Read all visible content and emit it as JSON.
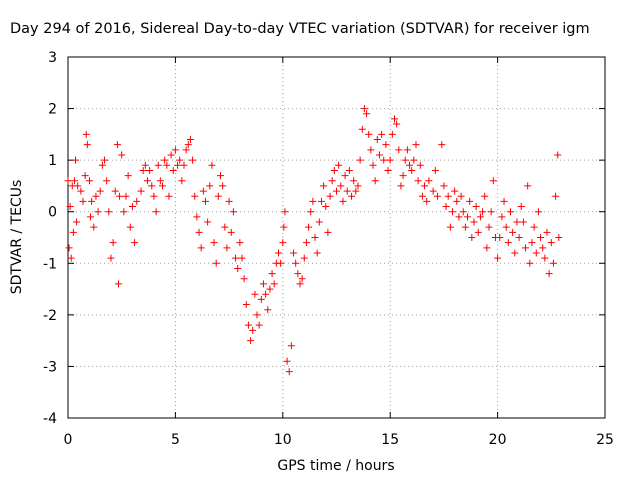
{
  "chart_data": {
    "type": "scatter",
    "title": "Day 294 of 2016, Sidereal Day-to-day VTEC variation (SDTVAR) for receiver igm",
    "xlabel": "GPS time / hours",
    "ylabel": "SDTVAR / TECUs",
    "xlim": [
      0,
      25
    ],
    "ylim": [
      -4,
      3
    ],
    "x_ticks": [
      0,
      5,
      10,
      15,
      20,
      25
    ],
    "y_ticks": [
      -4,
      -3,
      -2,
      -1,
      0,
      1,
      2,
      3
    ],
    "x_tick_labels": [
      "0",
      "5",
      "10",
      "15",
      "20",
      "25"
    ],
    "y_tick_labels": [
      "-4",
      "-3",
      "-2",
      "-1",
      "0",
      "1",
      "2",
      "3"
    ],
    "grid": true,
    "marker": "+",
    "color": "#ff0000",
    "series": [
      {
        "name": "SDTVAR",
        "points": [
          [
            0.0,
            0.6
          ],
          [
            0.05,
            -0.7
          ],
          [
            0.1,
            0.1
          ],
          [
            0.15,
            -0.9
          ],
          [
            0.2,
            0.5
          ],
          [
            0.25,
            -0.4
          ],
          [
            0.3,
            0.6
          ],
          [
            0.35,
            1.0
          ],
          [
            0.4,
            -0.2
          ],
          [
            0.45,
            0.5
          ],
          [
            0.6,
            0.4
          ],
          [
            0.7,
            0.2
          ],
          [
            0.8,
            0.7
          ],
          [
            0.85,
            1.5
          ],
          [
            0.9,
            1.3
          ],
          [
            1.0,
            0.6
          ],
          [
            1.05,
            -0.1
          ],
          [
            1.1,
            0.2
          ],
          [
            1.2,
            -0.3
          ],
          [
            1.3,
            0.3
          ],
          [
            1.4,
            0.0
          ],
          [
            1.5,
            0.4
          ],
          [
            1.6,
            0.9
          ],
          [
            1.7,
            1.0
          ],
          [
            1.8,
            0.6
          ],
          [
            1.9,
            0.0
          ],
          [
            2.0,
            -0.9
          ],
          [
            2.1,
            -0.6
          ],
          [
            2.2,
            0.4
          ],
          [
            2.3,
            1.3
          ],
          [
            2.35,
            -1.4
          ],
          [
            2.4,
            0.3
          ],
          [
            2.5,
            1.1
          ],
          [
            2.6,
            0.0
          ],
          [
            2.7,
            0.3
          ],
          [
            2.8,
            0.7
          ],
          [
            2.9,
            -0.3
          ],
          [
            3.0,
            0.1
          ],
          [
            3.1,
            -0.6
          ],
          [
            3.2,
            0.2
          ],
          [
            3.4,
            0.4
          ],
          [
            3.5,
            0.8
          ],
          [
            3.6,
            0.9
          ],
          [
            3.7,
            0.6
          ],
          [
            3.8,
            0.8
          ],
          [
            3.9,
            0.5
          ],
          [
            4.0,
            0.3
          ],
          [
            4.1,
            0.0
          ],
          [
            4.2,
            0.9
          ],
          [
            4.3,
            0.6
          ],
          [
            4.4,
            0.5
          ],
          [
            4.5,
            1.0
          ],
          [
            4.6,
            0.9
          ],
          [
            4.7,
            0.3
          ],
          [
            4.8,
            1.1
          ],
          [
            4.9,
            0.8
          ],
          [
            5.0,
            1.2
          ],
          [
            5.1,
            0.9
          ],
          [
            5.2,
            1.0
          ],
          [
            5.3,
            0.6
          ],
          [
            5.4,
            0.9
          ],
          [
            5.5,
            1.2
          ],
          [
            5.6,
            1.3
          ],
          [
            5.7,
            1.4
          ],
          [
            5.8,
            1.0
          ],
          [
            5.9,
            0.3
          ],
          [
            6.0,
            -0.1
          ],
          [
            6.1,
            -0.4
          ],
          [
            6.2,
            -0.7
          ],
          [
            6.3,
            0.4
          ],
          [
            6.4,
            0.2
          ],
          [
            6.5,
            -0.2
          ],
          [
            6.6,
            0.5
          ],
          [
            6.7,
            0.9
          ],
          [
            6.8,
            -0.6
          ],
          [
            6.9,
            -1.0
          ],
          [
            7.0,
            0.3
          ],
          [
            7.1,
            0.7
          ],
          [
            7.2,
            0.5
          ],
          [
            7.3,
            -0.3
          ],
          [
            7.4,
            -0.7
          ],
          [
            7.5,
            0.2
          ],
          [
            7.6,
            -0.4
          ],
          [
            7.7,
            0.0
          ],
          [
            7.8,
            -0.9
          ],
          [
            7.9,
            -1.1
          ],
          [
            8.0,
            -0.6
          ],
          [
            8.1,
            -0.9
          ],
          [
            8.2,
            -1.3
          ],
          [
            8.3,
            -1.8
          ],
          [
            8.4,
            -2.2
          ],
          [
            8.5,
            -2.5
          ],
          [
            8.6,
            -2.3
          ],
          [
            8.7,
            -1.6
          ],
          [
            8.8,
            -2.0
          ],
          [
            8.9,
            -2.2
          ],
          [
            9.0,
            -1.7
          ],
          [
            9.1,
            -1.4
          ],
          [
            9.2,
            -1.6
          ],
          [
            9.3,
            -1.9
          ],
          [
            9.4,
            -1.5
          ],
          [
            9.5,
            -1.2
          ],
          [
            9.6,
            -1.4
          ],
          [
            9.7,
            -1.0
          ],
          [
            9.8,
            -0.8
          ],
          [
            9.9,
            -1.0
          ],
          [
            10.0,
            -0.6
          ],
          [
            10.05,
            -0.3
          ],
          [
            10.1,
            0.0
          ],
          [
            10.2,
            -2.9
          ],
          [
            10.3,
            -3.1
          ],
          [
            10.4,
            -2.6
          ],
          [
            10.5,
            -0.8
          ],
          [
            10.6,
            -1.0
          ],
          [
            10.7,
            -1.2
          ],
          [
            10.8,
            -1.4
          ],
          [
            10.9,
            -1.3
          ],
          [
            11.0,
            -0.9
          ],
          [
            11.1,
            -0.6
          ],
          [
            11.2,
            -0.3
          ],
          [
            11.3,
            0.0
          ],
          [
            11.4,
            0.2
          ],
          [
            11.5,
            -0.5
          ],
          [
            11.6,
            -0.8
          ],
          [
            11.7,
            -0.2
          ],
          [
            11.8,
            0.2
          ],
          [
            11.9,
            0.5
          ],
          [
            12.0,
            0.1
          ],
          [
            12.1,
            -0.4
          ],
          [
            12.2,
            0.3
          ],
          [
            12.3,
            0.6
          ],
          [
            12.4,
            0.8
          ],
          [
            12.5,
            0.4
          ],
          [
            12.6,
            0.9
          ],
          [
            12.7,
            0.5
          ],
          [
            12.8,
            0.2
          ],
          [
            12.9,
            0.7
          ],
          [
            13.0,
            0.4
          ],
          [
            13.1,
            0.8
          ],
          [
            13.2,
            0.3
          ],
          [
            13.3,
            0.6
          ],
          [
            13.4,
            0.4
          ],
          [
            13.5,
            0.5
          ],
          [
            13.6,
            1.0
          ],
          [
            13.7,
            1.6
          ],
          [
            13.8,
            2.0
          ],
          [
            13.9,
            1.9
          ],
          [
            14.0,
            1.5
          ],
          [
            14.1,
            1.2
          ],
          [
            14.2,
            0.9
          ],
          [
            14.3,
            0.6
          ],
          [
            14.4,
            1.4
          ],
          [
            14.5,
            1.1
          ],
          [
            14.6,
            1.5
          ],
          [
            14.7,
            1.0
          ],
          [
            14.8,
            1.3
          ],
          [
            14.9,
            0.8
          ],
          [
            15.0,
            1.0
          ],
          [
            15.1,
            1.5
          ],
          [
            15.2,
            1.8
          ],
          [
            15.3,
            1.7
          ],
          [
            15.4,
            1.2
          ],
          [
            15.5,
            0.5
          ],
          [
            15.6,
            0.7
          ],
          [
            15.7,
            1.0
          ],
          [
            15.8,
            1.2
          ],
          [
            15.9,
            0.9
          ],
          [
            16.0,
            0.8
          ],
          [
            16.1,
            1.0
          ],
          [
            16.2,
            1.3
          ],
          [
            16.3,
            0.6
          ],
          [
            16.4,
            0.9
          ],
          [
            16.5,
            0.3
          ],
          [
            16.6,
            0.5
          ],
          [
            16.7,
            0.2
          ],
          [
            16.8,
            0.6
          ],
          [
            17.0,
            0.4
          ],
          [
            17.1,
            0.8
          ],
          [
            17.2,
            0.3
          ],
          [
            17.4,
            1.3
          ],
          [
            17.5,
            0.5
          ],
          [
            17.6,
            0.1
          ],
          [
            17.7,
            0.3
          ],
          [
            17.8,
            -0.3
          ],
          [
            17.9,
            0.0
          ],
          [
            18.0,
            0.4
          ],
          [
            18.1,
            0.2
          ],
          [
            18.2,
            -0.1
          ],
          [
            18.3,
            0.3
          ],
          [
            18.4,
            0.0
          ],
          [
            18.5,
            -0.3
          ],
          [
            18.6,
            -0.1
          ],
          [
            18.7,
            0.2
          ],
          [
            18.8,
            -0.5
          ],
          [
            18.9,
            -0.2
          ],
          [
            19.0,
            0.1
          ],
          [
            19.1,
            -0.4
          ],
          [
            19.2,
            -0.1
          ],
          [
            19.3,
            0.0
          ],
          [
            19.4,
            0.3
          ],
          [
            19.5,
            -0.7
          ],
          [
            19.6,
            -0.3
          ],
          [
            19.7,
            0.0
          ],
          [
            19.8,
            0.6
          ],
          [
            19.9,
            -0.5
          ],
          [
            20.0,
            -0.9
          ],
          [
            20.1,
            -0.5
          ],
          [
            20.2,
            -0.1
          ],
          [
            20.3,
            0.2
          ],
          [
            20.4,
            -0.3
          ],
          [
            20.5,
            -0.6
          ],
          [
            20.6,
            0.0
          ],
          [
            20.7,
            -0.4
          ],
          [
            20.8,
            -0.8
          ],
          [
            20.9,
            -0.2
          ],
          [
            21.0,
            -0.5
          ],
          [
            21.1,
            0.1
          ],
          [
            21.2,
            -0.2
          ],
          [
            21.3,
            -0.7
          ],
          [
            21.4,
            0.5
          ],
          [
            21.5,
            -1.0
          ],
          [
            21.6,
            -0.6
          ],
          [
            21.7,
            -0.3
          ],
          [
            21.8,
            -0.8
          ],
          [
            21.9,
            0.0
          ],
          [
            22.0,
            -0.5
          ],
          [
            22.1,
            -0.7
          ],
          [
            22.2,
            -0.9
          ],
          [
            22.3,
            -0.4
          ],
          [
            22.4,
            -1.2
          ],
          [
            22.5,
            -0.6
          ],
          [
            22.6,
            -1.0
          ],
          [
            22.7,
            0.3
          ],
          [
            22.8,
            1.1
          ],
          [
            22.85,
            -0.5
          ]
        ]
      }
    ]
  }
}
